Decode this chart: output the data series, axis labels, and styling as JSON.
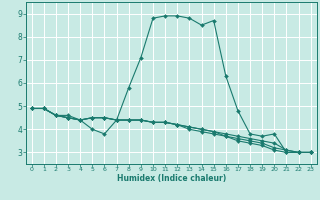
{
  "title": "",
  "xlabel": "Humidex (Indice chaleur)",
  "bg_color": "#c8eae4",
  "grid_color": "#ffffff",
  "line_color": "#1a7a6e",
  "xlim": [
    -0.5,
    23.5
  ],
  "ylim": [
    2.5,
    9.5
  ],
  "xticks": [
    0,
    1,
    2,
    3,
    4,
    5,
    6,
    7,
    8,
    9,
    10,
    11,
    12,
    13,
    14,
    15,
    16,
    17,
    18,
    19,
    20,
    21,
    22,
    23
  ],
  "yticks": [
    3,
    4,
    5,
    6,
    7,
    8,
    9
  ],
  "series": [
    {
      "x": [
        0,
        1,
        2,
        3,
        4,
        5,
        6,
        7,
        8,
        9,
        10,
        11,
        12,
        13,
        14,
        15,
        16,
        17,
        18,
        19,
        20,
        21,
        22,
        23
      ],
      "y": [
        4.9,
        4.9,
        4.6,
        4.6,
        4.4,
        4.0,
        3.8,
        4.4,
        5.8,
        7.1,
        8.8,
        8.9,
        8.9,
        8.8,
        8.5,
        8.7,
        6.3,
        4.8,
        3.8,
        3.7,
        3.8,
        3.0,
        3.0,
        3.0
      ]
    },
    {
      "x": [
        0,
        1,
        2,
        3,
        4,
        5,
        6,
        7,
        8,
        9,
        10,
        11,
        12,
        13,
        14,
        15,
        16,
        17,
        18,
        19,
        20,
        21,
        22,
        23
      ],
      "y": [
        4.9,
        4.9,
        4.6,
        4.5,
        4.4,
        4.5,
        4.5,
        4.4,
        4.4,
        4.4,
        4.3,
        4.3,
        4.2,
        4.1,
        4.0,
        3.9,
        3.8,
        3.7,
        3.6,
        3.5,
        3.4,
        3.1,
        3.0,
        3.0
      ]
    },
    {
      "x": [
        0,
        1,
        2,
        3,
        4,
        5,
        6,
        7,
        8,
        9,
        10,
        11,
        12,
        13,
        14,
        15,
        16,
        17,
        18,
        19,
        20,
        21,
        22,
        23
      ],
      "y": [
        4.9,
        4.9,
        4.6,
        4.5,
        4.4,
        4.5,
        4.5,
        4.4,
        4.4,
        4.4,
        4.3,
        4.3,
        4.2,
        4.1,
        4.0,
        3.9,
        3.7,
        3.6,
        3.5,
        3.4,
        3.2,
        3.1,
        3.0,
        3.0
      ]
    },
    {
      "x": [
        0,
        1,
        2,
        3,
        4,
        5,
        6,
        7,
        8,
        9,
        10,
        11,
        12,
        13,
        14,
        15,
        16,
        17,
        18,
        19,
        20,
        21,
        22,
        23
      ],
      "y": [
        4.9,
        4.9,
        4.6,
        4.5,
        4.4,
        4.5,
        4.5,
        4.4,
        4.4,
        4.4,
        4.3,
        4.3,
        4.2,
        4.0,
        3.9,
        3.8,
        3.7,
        3.5,
        3.4,
        3.3,
        3.1,
        3.0,
        3.0,
        3.0
      ]
    }
  ]
}
